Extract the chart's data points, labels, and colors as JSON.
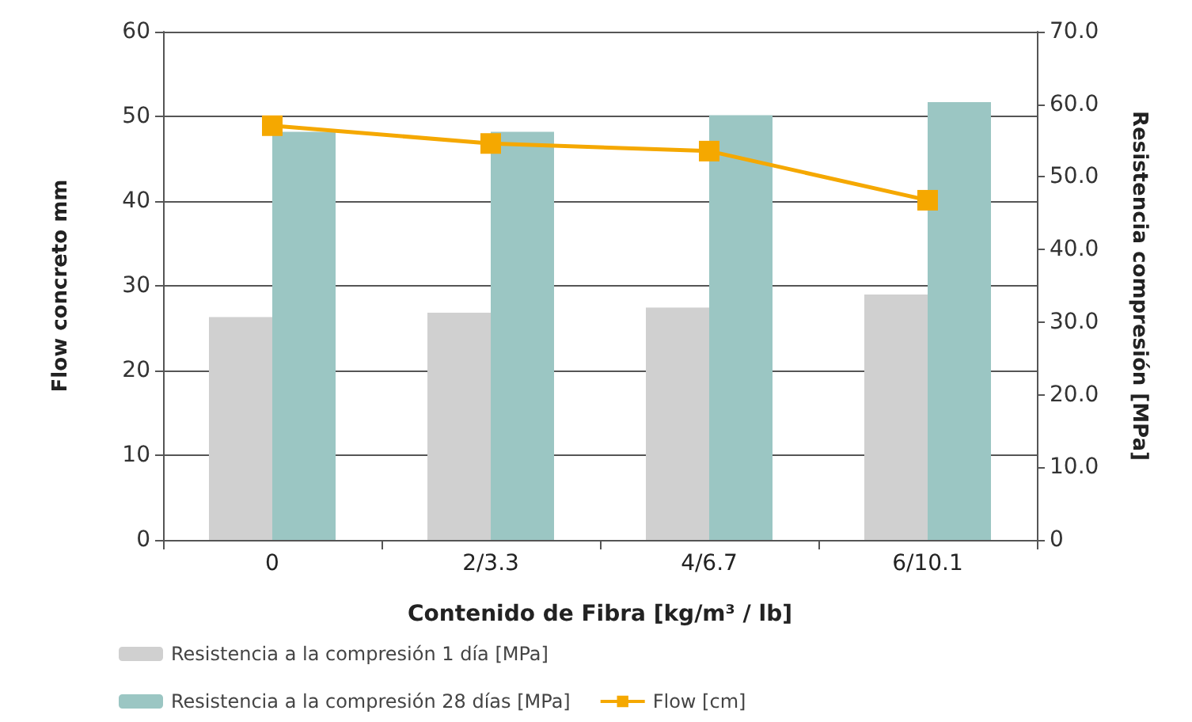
{
  "chart_data": {
    "type": "bar",
    "xlabel": "Contenido de Fibra [kg/m³ / lb]",
    "ylabel": "Flow concreto mm",
    "y2label": "Resistencia compresión [MPa]",
    "categories": [
      "0",
      "2/3.3",
      "4/6.7",
      "6/10.1"
    ],
    "series": [
      {
        "name": "Resistencia a la compresión 1 día [MPa]",
        "color": "#d0d0d0",
        "axis": "y2",
        "values": [
          30.7,
          31.3,
          32.0,
          33.8
        ]
      },
      {
        "name": "Resistencia a la compresión 28 días [MPa]",
        "color": "#9bc6c3",
        "axis": "y2",
        "values": [
          56.2,
          56.2,
          58.5,
          60.3
        ]
      },
      {
        "name": "Flow [cm]",
        "type": "line",
        "color": "#f5a800",
        "values": [
          48.9,
          46.8,
          45.9,
          40.1
        ]
      }
    ],
    "ylim": [
      0,
      60
    ],
    "yticks": [
      0,
      10,
      20,
      30,
      40,
      50,
      60
    ],
    "y2lim": [
      0,
      70
    ],
    "y2ticks": [
      0,
      {
        "value": 10,
        "label": "10.0"
      },
      {
        "value": 20,
        "label": "20.0"
      },
      {
        "value": 30,
        "label": "30.0"
      },
      {
        "value": 40,
        "label": "40.0"
      },
      {
        "value": 50,
        "label": "50.0"
      },
      {
        "value": 60,
        "label": "60.0"
      },
      {
        "value": 70,
        "label": "70.0"
      }
    ],
    "grid": "y",
    "legend": "bottom left",
    "marker": "square",
    "line_style": "solid"
  }
}
